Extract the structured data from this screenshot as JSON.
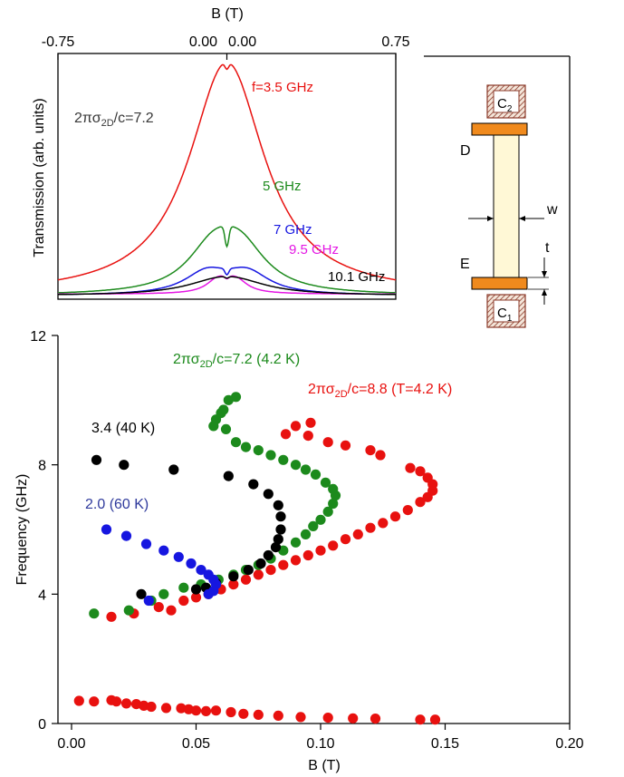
{
  "colors": {
    "red": "#e8110f",
    "green": "#1c8a1c",
    "black": "#000000",
    "blue": "#1616e0",
    "magenta": "#e417e4",
    "inset_label": "#383838",
    "series_label_blue": "#2f3a9c",
    "strip": "#fff8d6",
    "contact": "#f08a1d",
    "pad": "#8b3a2a"
  },
  "chart_data": [
    {
      "type": "line",
      "xlabel": "B (T)",
      "ylabel": "Transmission (arb. units)",
      "x_ticks": [
        "-0.75",
        "0.00",
        "0.00",
        "0.75"
      ],
      "xlim": [
        -0.75,
        0.75
      ],
      "annotation": "2πσ2D/c=7.2",
      "series": [
        {
          "name": "f=3.5 GHz",
          "color": "#e8110f",
          "peak_B": 0.02,
          "peak_height": 1.0,
          "width": 0.2,
          "dip_depth": 0.03
        },
        {
          "name": "5 GHz",
          "color": "#1c8a1c",
          "peak_B": 0.06,
          "peak_height": 0.35,
          "width": 0.14,
          "dip_depth": 0.25
        },
        {
          "name": "7 GHz",
          "color": "#1616e0",
          "peak_B": 0.09,
          "peak_height": 0.18,
          "width": 0.12,
          "dip_depth": 0.15
        },
        {
          "name": "9.5 GHz",
          "color": "#e417e4",
          "peak_B": 0.04,
          "peak_height": 0.11,
          "width": 0.06,
          "dip_depth": 0.1
        },
        {
          "name": "10.1 GHz",
          "color": "#000000",
          "peak_B": 0.04,
          "peak_height": 0.085,
          "width": 0.18,
          "dip_depth": 0.08
        }
      ]
    },
    {
      "type": "scatter",
      "xlabel": "B (T)",
      "ylabel": "Frequency (GHz)",
      "xlim": [
        0.0,
        0.2
      ],
      "ylim": [
        0,
        12
      ],
      "x_ticks": [
        "0.00",
        "0.05",
        "0.10",
        "0.15",
        "0.20"
      ],
      "y_ticks": [
        "0",
        "4",
        "8",
        "12"
      ],
      "series": [
        {
          "name": "2πσ2D/c=8.8 (T=4.2 K)",
          "color": "#e8110f",
          "points": [
            [
              0.003,
              0.7
            ],
            [
              0.009,
              0.68
            ],
            [
              0.016,
              0.72
            ],
            [
              0.018,
              0.68
            ],
            [
              0.022,
              0.62
            ],
            [
              0.026,
              0.6
            ],
            [
              0.029,
              0.55
            ],
            [
              0.032,
              0.52
            ],
            [
              0.038,
              0.48
            ],
            [
              0.044,
              0.47
            ],
            [
              0.047,
              0.44
            ],
            [
              0.05,
              0.4
            ],
            [
              0.054,
              0.38
            ],
            [
              0.058,
              0.4
            ],
            [
              0.064,
              0.35
            ],
            [
              0.069,
              0.3
            ],
            [
              0.075,
              0.27
            ],
            [
              0.083,
              0.24
            ],
            [
              0.092,
              0.2
            ],
            [
              0.103,
              0.18
            ],
            [
              0.113,
              0.16
            ],
            [
              0.122,
              0.15
            ],
            [
              0.14,
              0.12
            ],
            [
              0.146,
              0.12
            ],
            [
              0.016,
              3.3
            ],
            [
              0.025,
              3.4
            ],
            [
              0.035,
              3.6
            ],
            [
              0.04,
              3.5
            ],
            [
              0.045,
              3.8
            ],
            [
              0.05,
              3.9
            ],
            [
              0.055,
              4.0
            ],
            [
              0.06,
              4.15
            ],
            [
              0.065,
              4.3
            ],
            [
              0.07,
              4.45
            ],
            [
              0.075,
              4.6
            ],
            [
              0.08,
              4.75
            ],
            [
              0.085,
              4.9
            ],
            [
              0.09,
              5.05
            ],
            [
              0.095,
              5.2
            ],
            [
              0.1,
              5.35
            ],
            [
              0.105,
              5.5
            ],
            [
              0.11,
              5.7
            ],
            [
              0.115,
              5.85
            ],
            [
              0.12,
              6.05
            ],
            [
              0.125,
              6.2
            ],
            [
              0.13,
              6.4
            ],
            [
              0.135,
              6.6
            ],
            [
              0.14,
              6.85
            ],
            [
              0.143,
              7.0
            ],
            [
              0.145,
              7.2
            ],
            [
              0.145,
              7.4
            ],
            [
              0.143,
              7.6
            ],
            [
              0.14,
              7.8
            ],
            [
              0.136,
              7.9
            ],
            [
              0.124,
              8.3
            ],
            [
              0.12,
              8.45
            ],
            [
              0.11,
              8.6
            ],
            [
              0.103,
              8.7
            ],
            [
              0.095,
              8.9
            ],
            [
              0.086,
              8.95
            ],
            [
              0.09,
              9.2
            ],
            [
              0.096,
              9.3
            ]
          ]
        },
        {
          "name": "2πσ2D/c=7.2 (4.2 K)",
          "color": "#1c8a1c",
          "points": [
            [
              0.009,
              3.4
            ],
            [
              0.023,
              3.5
            ],
            [
              0.032,
              3.8
            ],
            [
              0.037,
              4.0
            ],
            [
              0.045,
              4.2
            ],
            [
              0.052,
              4.3
            ],
            [
              0.059,
              4.45
            ],
            [
              0.065,
              4.6
            ],
            [
              0.07,
              4.75
            ],
            [
              0.075,
              4.9
            ],
            [
              0.08,
              5.1
            ],
            [
              0.085,
              5.35
            ],
            [
              0.09,
              5.6
            ],
            [
              0.094,
              5.85
            ],
            [
              0.097,
              6.1
            ],
            [
              0.1,
              6.3
            ],
            [
              0.103,
              6.55
            ],
            [
              0.105,
              6.8
            ],
            [
              0.106,
              7.05
            ],
            [
              0.105,
              7.25
            ],
            [
              0.102,
              7.45
            ],
            [
              0.098,
              7.7
            ],
            [
              0.094,
              7.85
            ],
            [
              0.09,
              8.0
            ],
            [
              0.085,
              8.15
            ],
            [
              0.08,
              8.3
            ],
            [
              0.075,
              8.45
            ],
            [
              0.07,
              8.55
            ],
            [
              0.066,
              8.7
            ],
            [
              0.062,
              9.1
            ],
            [
              0.058,
              9.4
            ],
            [
              0.057,
              9.2
            ],
            [
              0.06,
              9.6
            ],
            [
              0.063,
              10.0
            ],
            [
              0.066,
              10.1
            ],
            [
              0.061,
              9.7
            ]
          ]
        },
        {
          "name": "3.4 (40 K)",
          "color": "#000000",
          "points": [
            [
              0.01,
              8.15
            ],
            [
              0.021,
              8.0
            ],
            [
              0.041,
              7.85
            ],
            [
              0.063,
              7.65
            ],
            [
              0.073,
              7.4
            ],
            [
              0.079,
              7.1
            ],
            [
              0.083,
              6.75
            ],
            [
              0.084,
              6.4
            ],
            [
              0.084,
              6.0
            ],
            [
              0.083,
              5.7
            ],
            [
              0.082,
              5.45
            ],
            [
              0.079,
              5.2
            ],
            [
              0.076,
              4.95
            ],
            [
              0.071,
              4.75
            ],
            [
              0.065,
              4.55
            ],
            [
              0.058,
              4.35
            ],
            [
              0.054,
              4.2
            ],
            [
              0.05,
              4.15
            ],
            [
              0.028,
              4.0
            ]
          ]
        },
        {
          "name": "2.0 (60 K)",
          "color": "#1616e0",
          "points": [
            [
              0.014,
              6.0
            ],
            [
              0.022,
              5.8
            ],
            [
              0.03,
              5.55
            ],
            [
              0.037,
              5.35
            ],
            [
              0.043,
              5.15
            ],
            [
              0.048,
              4.95
            ],
            [
              0.052,
              4.75
            ],
            [
              0.055,
              4.6
            ],
            [
              0.057,
              4.45
            ],
            [
              0.058,
              4.3
            ],
            [
              0.057,
              4.1
            ],
            [
              0.055,
              4.0
            ],
            [
              0.031,
              3.8
            ]
          ]
        }
      ]
    }
  ],
  "inset_diagram": {
    "contact_top": "C2",
    "contact_bottom": "C1",
    "label_D": "D",
    "label_E": "E",
    "label_w": "w",
    "label_t": "t"
  }
}
